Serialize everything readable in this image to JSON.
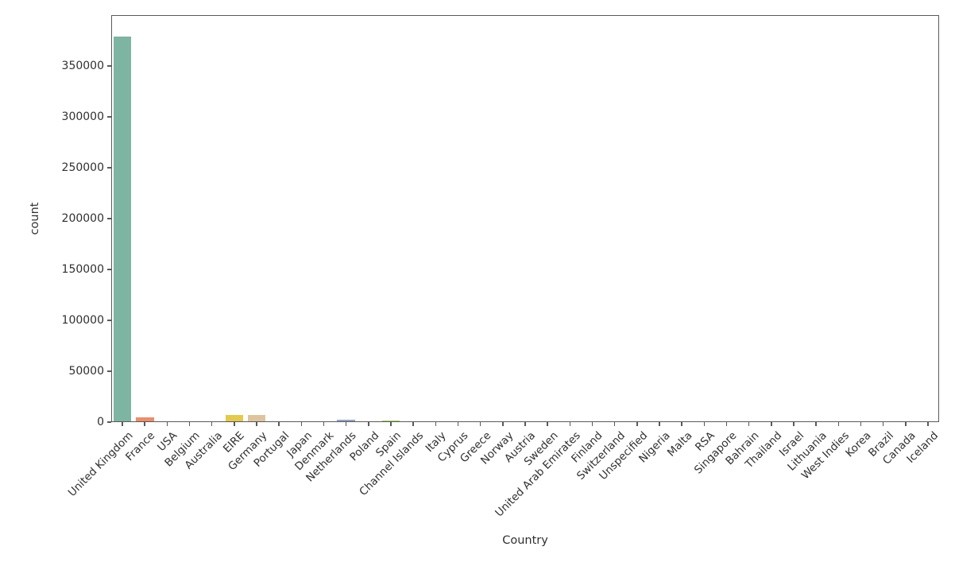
{
  "figure": {
    "background_color": "#ffffff",
    "text_color": "#303030",
    "spine_color": "#5a5a5a"
  },
  "chart_data": {
    "type": "bar",
    "title": "",
    "xlabel": "Country",
    "ylabel": "count",
    "categories": [
      "United Kingdom",
      "France",
      "USA",
      "Belgium",
      "Australia",
      "EIRE",
      "Germany",
      "Portugal",
      "Japan",
      "Denmark",
      "Netherlands",
      "Poland",
      "Spain",
      "Channel Islands",
      "Italy",
      "Cyprus",
      "Greece",
      "Norway",
      "Austria",
      "Sweden",
      "United Arab Emirates",
      "Finland",
      "Switzerland",
      "Unspecified",
      "Nigeria",
      "Malta",
      "RSA",
      "Singapore",
      "Bahrain",
      "Thailand",
      "Israel",
      "Lithuania",
      "West Indies",
      "Korea",
      "Brazil",
      "Canada",
      "Iceland"
    ],
    "values": [
      379000,
      5000,
      0,
      0,
      0,
      7400,
      7000,
      0,
      0,
      0,
      2400,
      0,
      1600,
      0,
      0,
      0,
      0,
      0,
      0,
      0,
      0,
      0,
      0,
      0,
      0,
      0,
      0,
      0,
      0,
      0,
      0,
      0,
      0,
      0,
      0,
      0,
      0
    ],
    "ylim": [
      0,
      400000
    ],
    "yticks": [
      0,
      50000,
      100000,
      150000,
      200000,
      250000,
      300000,
      350000
    ],
    "grid": false,
    "legend": null,
    "bar_width_fraction": 0.8,
    "palette": [
      "#7eb4a2",
      "#e98e6e",
      "#94a1c3",
      "#dd96c0",
      "#a2cf62",
      "#e3c94e",
      "#dec49e",
      "#b4b4b4"
    ]
  }
}
